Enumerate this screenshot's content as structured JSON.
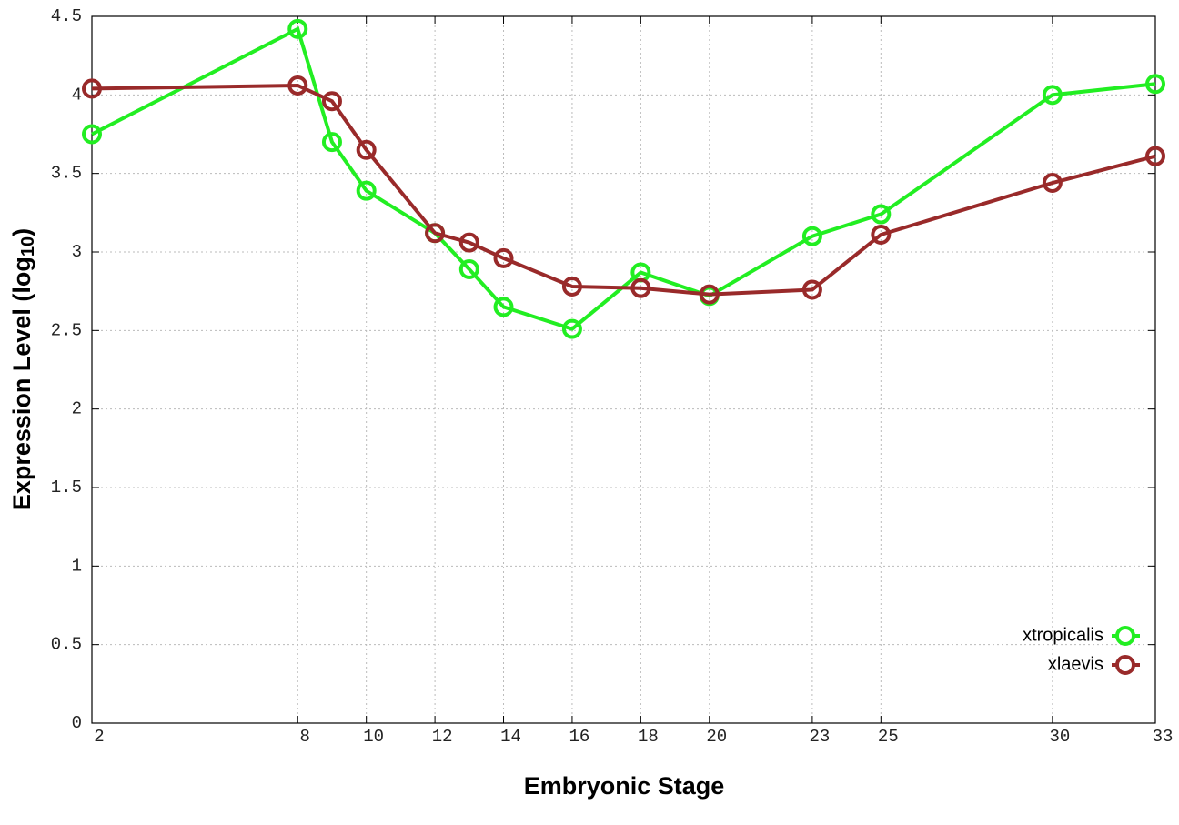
{
  "chart_data": {
    "type": "line",
    "x_label": "Embryonic Stage",
    "y_label": {
      "text": "Expression Level (log",
      "sub": "10",
      "end": ")"
    },
    "x": [
      2,
      8,
      9,
      10,
      12,
      13,
      14,
      16,
      18,
      20,
      23,
      25,
      30,
      33
    ],
    "series": [
      {
        "name": "xtropicalis",
        "color": "#22ee22",
        "values": [
          3.75,
          4.42,
          3.7,
          3.39,
          3.12,
          2.89,
          2.65,
          2.51,
          2.87,
          2.72,
          3.1,
          3.24,
          4.0,
          4.07
        ]
      },
      {
        "name": "xlaevis",
        "color": "#992a2a",
        "values": [
          4.04,
          4.06,
          3.96,
          3.65,
          3.12,
          3.06,
          2.96,
          2.78,
          2.77,
          2.73,
          2.76,
          3.11,
          3.44,
          3.61
        ]
      }
    ],
    "xlim": [
      2,
      33
    ],
    "xticks": [
      2,
      8,
      10,
      12,
      14,
      16,
      18,
      20,
      23,
      25,
      30,
      33
    ],
    "ylim": [
      0,
      4.5
    ],
    "yticks": [
      0,
      0.5,
      1,
      1.5,
      2,
      2.5,
      3,
      3.5,
      4,
      4.5
    ],
    "grid": true,
    "legend": "lower-right"
  }
}
